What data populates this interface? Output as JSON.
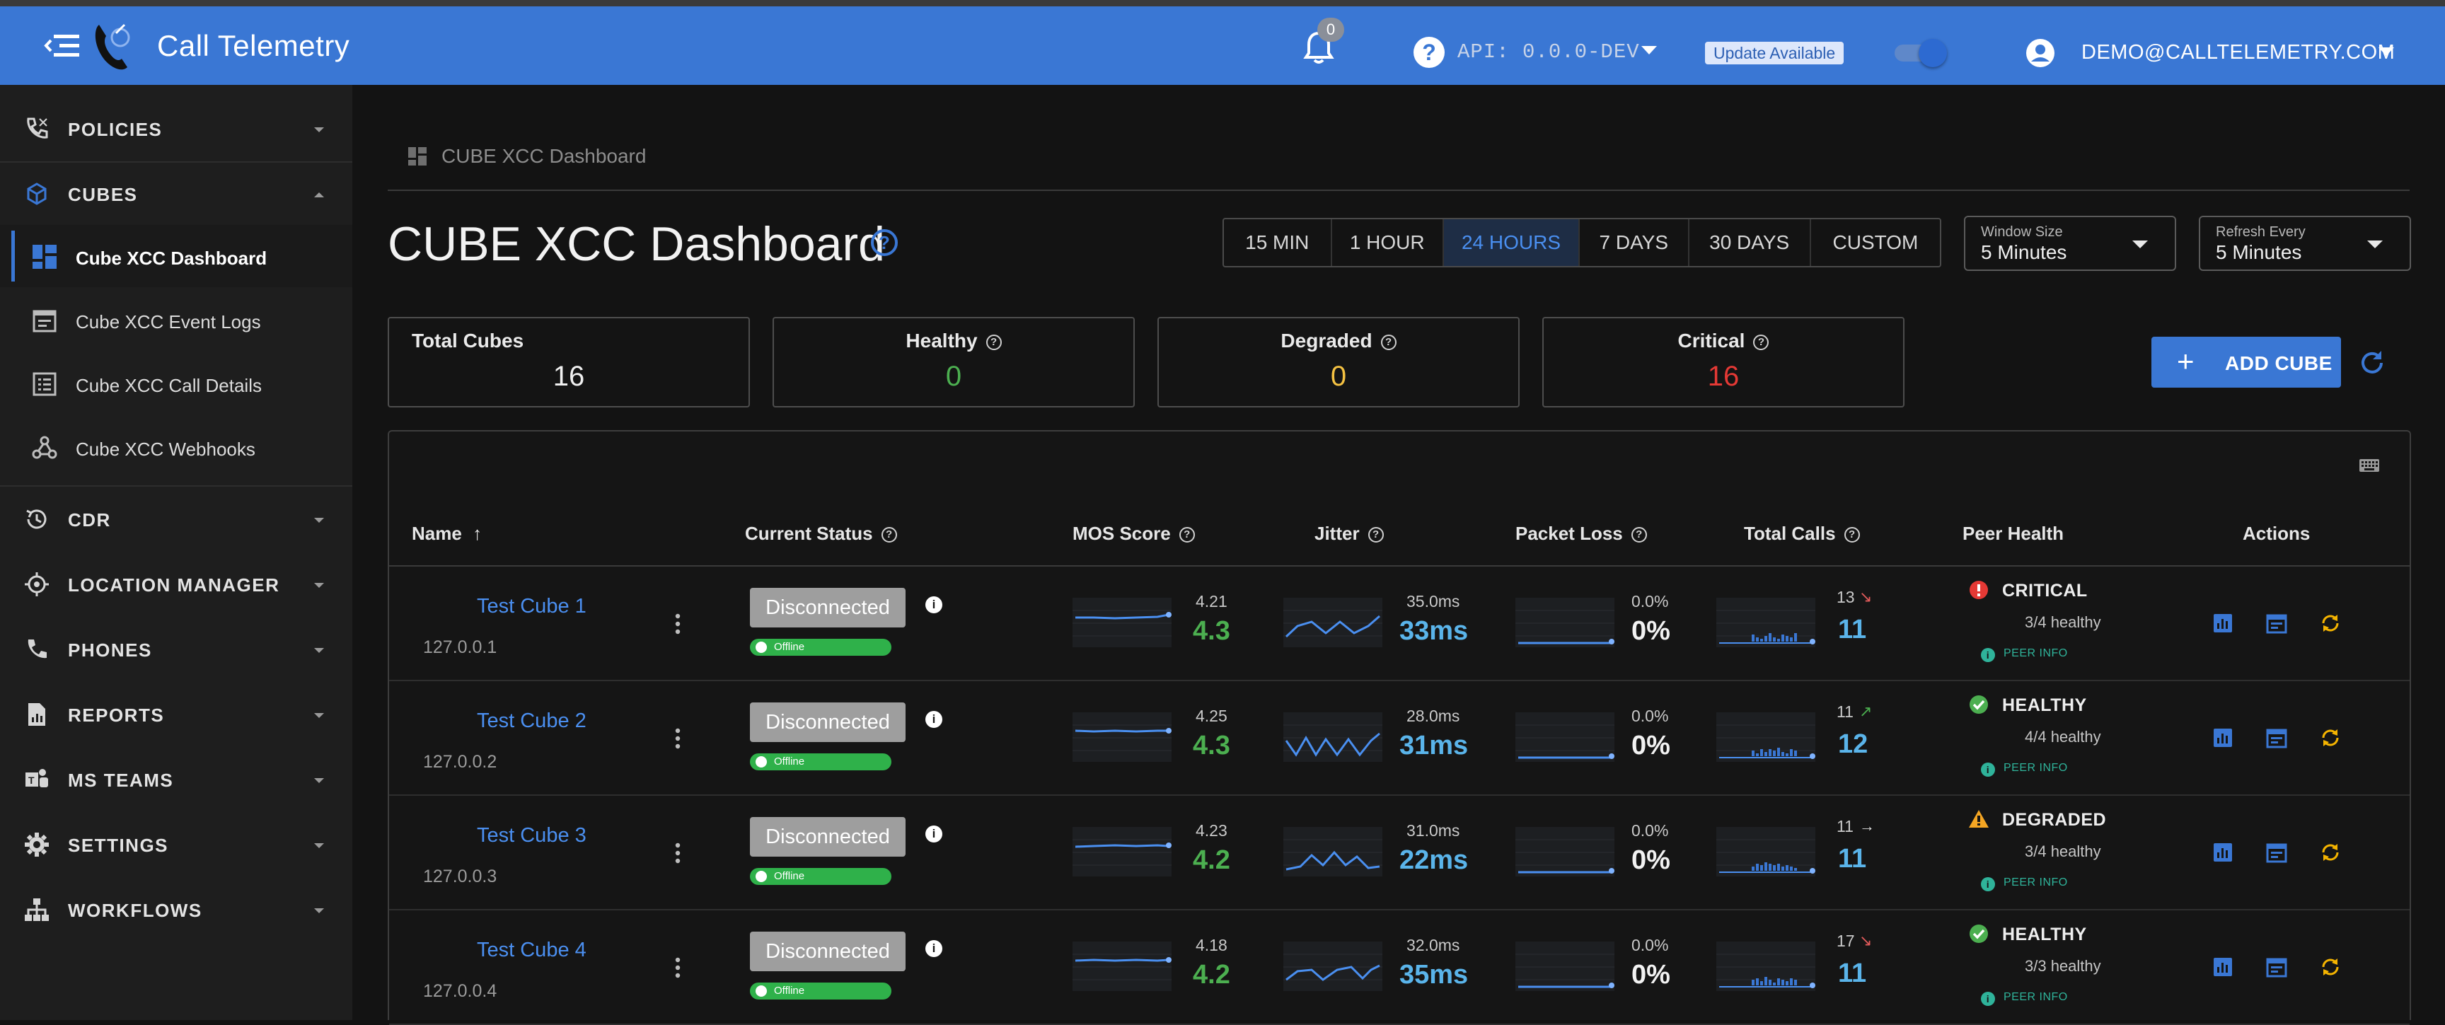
{
  "appbar": {
    "brand": "Call Telemetry",
    "notifications_count": "0",
    "api_version": "API: 0.0.0-DEV",
    "update_label": "Update Available",
    "user_email": "DEMO@CALLTELEMETRY.COM"
  },
  "sidebar": {
    "items": [
      {
        "label": "POLICIES"
      },
      {
        "label": "CUBES"
      },
      {
        "label": "CDR"
      },
      {
        "label": "LOCATION MANAGER"
      },
      {
        "label": "PHONES"
      },
      {
        "label": "REPORTS"
      },
      {
        "label": "MS TEAMS"
      },
      {
        "label": "SETTINGS"
      },
      {
        "label": "WORKFLOWS"
      }
    ],
    "cubes_sub": [
      {
        "label": "Cube XCC Dashboard"
      },
      {
        "label": "Cube XCC Event Logs"
      },
      {
        "label": "Cube XCC Call Details"
      },
      {
        "label": "Cube XCC Webhooks"
      }
    ]
  },
  "breadcrumb": "CUBE XCC Dashboard",
  "page_title": "CUBE XCC Dashboard",
  "time_ranges": [
    "15 MIN",
    "1 HOUR",
    "24 HOURS",
    "7 DAYS",
    "30 DAYS",
    "CUSTOM"
  ],
  "selected_range": "24 HOURS",
  "window_size": {
    "caption": "Window Size",
    "value": "5 Minutes"
  },
  "refresh_every": {
    "caption": "Refresh Every",
    "value": "5 Minutes"
  },
  "stats": {
    "total": {
      "label": "Total Cubes",
      "value": "16"
    },
    "healthy": {
      "label": "Healthy",
      "value": "0"
    },
    "degraded": {
      "label": "Degraded",
      "value": "0"
    },
    "critical": {
      "label": "Critical",
      "value": "16"
    }
  },
  "colors": {
    "accent": "#3a77d4",
    "healthy": "#4caf50",
    "degraded": "#f5c242",
    "critical": "#e53935",
    "metric_blue": "#5ab4ea"
  },
  "add_cube_label": "ADD CUBE",
  "table": {
    "headers": {
      "name": "Name",
      "status": "Current Status",
      "mos": "MOS Score",
      "jitter": "Jitter",
      "loss": "Packet Loss",
      "calls": "Total Calls",
      "peer": "Peer Health",
      "actions": "Actions"
    },
    "rows": [
      {
        "name": "Test Cube 1",
        "ip": "127.0.0.1",
        "status": "Disconnected",
        "conn": "Offline",
        "mos_small": "4.21",
        "mos": "4.3",
        "jitter_small": "35.0ms",
        "jitter": "33ms",
        "loss_small": "0.0%",
        "loss": "0%",
        "calls_small": "13",
        "calls_trend": "down",
        "calls": "11",
        "peer_status": "CRITICAL",
        "peer_icon": "error-icon",
        "peer_healthy": "3/4 healthy",
        "peer_info": "PEER INFO"
      },
      {
        "name": "Test Cube 2",
        "ip": "127.0.0.2",
        "status": "Disconnected",
        "conn": "Offline",
        "mos_small": "4.25",
        "mos": "4.3",
        "jitter_small": "28.0ms",
        "jitter": "31ms",
        "loss_small": "0.0%",
        "loss": "0%",
        "calls_small": "11",
        "calls_trend": "up",
        "calls": "12",
        "peer_status": "HEALTHY",
        "peer_icon": "check-circle-icon",
        "peer_healthy": "4/4 healthy",
        "peer_info": "PEER INFO"
      },
      {
        "name": "Test Cube 3",
        "ip": "127.0.0.3",
        "status": "Disconnected",
        "conn": "Offline",
        "mos_small": "4.23",
        "mos": "4.2",
        "jitter_small": "31.0ms",
        "jitter": "22ms",
        "loss_small": "0.0%",
        "loss": "0%",
        "calls_small": "11",
        "calls_trend": "flat",
        "calls": "11",
        "peer_status": "DEGRADED",
        "peer_icon": "warning-icon",
        "peer_healthy": "3/4 healthy",
        "peer_info": "PEER INFO"
      },
      {
        "name": "Test Cube 4",
        "ip": "127.0.0.4",
        "status": "Disconnected",
        "conn": "Offline",
        "mos_small": "4.18",
        "mos": "4.2",
        "jitter_small": "32.0ms",
        "jitter": "35ms",
        "loss_small": "0.0%",
        "loss": "0%",
        "calls_small": "17",
        "calls_trend": "down",
        "calls": "11",
        "peer_status": "HEALTHY",
        "peer_icon": "check-circle-icon",
        "peer_healthy": "3/3 healthy",
        "peer_info": "PEER INFO"
      }
    ]
  }
}
